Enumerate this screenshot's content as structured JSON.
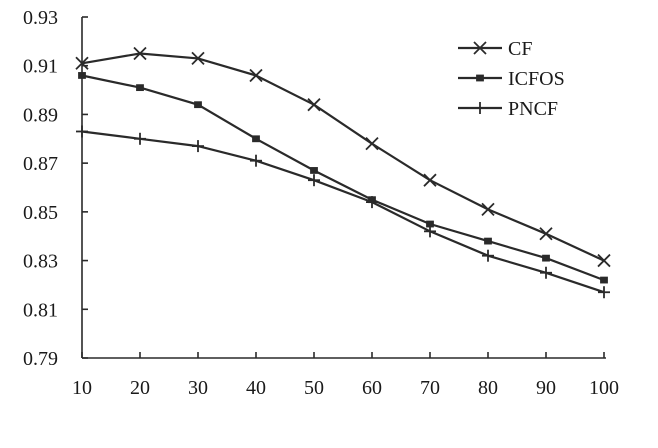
{
  "chart_data": {
    "type": "line",
    "title": "",
    "xlabel": "",
    "ylabel": "",
    "x": [
      10,
      20,
      30,
      40,
      50,
      60,
      70,
      80,
      90,
      100
    ],
    "x_tick_labels": [
      "10",
      "20",
      "30",
      "40",
      "50",
      "60",
      "70",
      "80",
      "90",
      "100"
    ],
    "y_tick_labels": [
      "0.79",
      "0.81",
      "0.83",
      "0.85",
      "0.87",
      "0.89",
      "0.91",
      "0.93"
    ],
    "y_ticks": [
      0.79,
      0.81,
      0.83,
      0.85,
      0.87,
      0.89,
      0.91,
      0.93
    ],
    "ylim": [
      0.79,
      0.93
    ],
    "grid": false,
    "legend_position": "top-right",
    "series": [
      {
        "name": "CF",
        "marker": "x",
        "values": [
          0.911,
          0.915,
          0.913,
          0.906,
          0.894,
          0.878,
          0.863,
          0.851,
          0.841,
          0.83
        ]
      },
      {
        "name": "ICFOS",
        "marker": "square",
        "values": [
          0.906,
          0.901,
          0.894,
          0.88,
          0.867,
          0.855,
          0.845,
          0.838,
          0.831,
          0.822
        ]
      },
      {
        "name": "PNCF",
        "marker": "plus",
        "values": [
          0.883,
          0.88,
          0.877,
          0.871,
          0.863,
          0.854,
          0.842,
          0.832,
          0.825,
          0.817
        ]
      }
    ]
  }
}
